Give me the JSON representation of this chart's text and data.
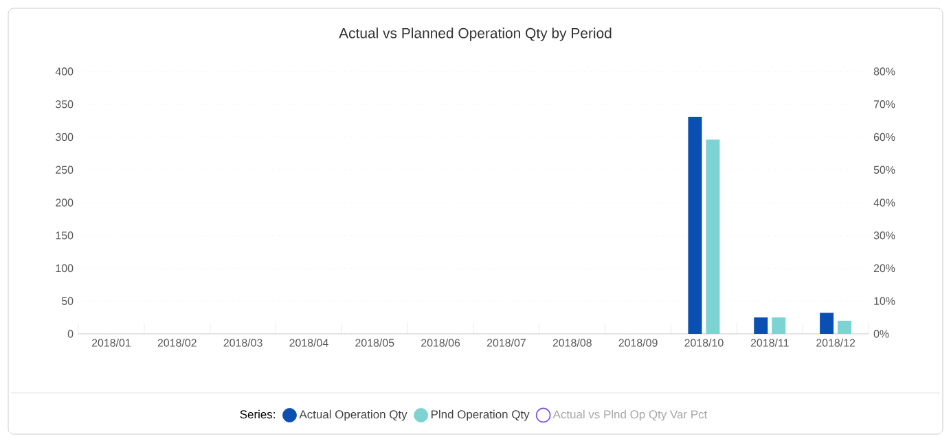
{
  "chart_data": {
    "type": "bar",
    "title": "Actual vs Planned Operation Qty by Period",
    "categories": [
      "2018/01",
      "2018/02",
      "2018/03",
      "2018/04",
      "2018/05",
      "2018/06",
      "2018/07",
      "2018/08",
      "2018/09",
      "2018/10",
      "2018/11",
      "2018/12"
    ],
    "series": [
      {
        "name": "Actual Operation Qty",
        "color": "#0b4fb3",
        "values": [
          null,
          null,
          null,
          null,
          null,
          null,
          null,
          null,
          null,
          331,
          25,
          32
        ]
      },
      {
        "name": "Plnd Operation Qty",
        "color": "#7dd3d2",
        "values": [
          null,
          null,
          null,
          null,
          null,
          null,
          null,
          null,
          null,
          296,
          25,
          20
        ]
      },
      {
        "name": "Actual vs Plnd Op Qty Var Pct",
        "type": "line",
        "color": "#7b4fe0",
        "values": [
          null,
          null,
          null,
          null,
          null,
          null,
          null,
          null,
          null,
          null,
          null,
          null
        ]
      }
    ],
    "ylim": [
      0,
      400
    ],
    "yticks": [
      0,
      50,
      100,
      150,
      200,
      250,
      300,
      350,
      400
    ],
    "y2lim": [
      0,
      80
    ],
    "y2ticks": [
      {
        "value": 0,
        "label": "0%"
      },
      {
        "value": 10,
        "label": "10%"
      },
      {
        "value": 20,
        "label": "20%"
      },
      {
        "value": 30,
        "label": "30%"
      },
      {
        "value": 40,
        "label": "40%"
      },
      {
        "value": 50,
        "label": "50%"
      },
      {
        "value": 60,
        "label": "60%"
      },
      {
        "value": 70,
        "label": "70%"
      },
      {
        "value": 80,
        "label": "80%"
      }
    ],
    "grid": "y",
    "legend": "bottom",
    "legend_title": "Series:"
  }
}
